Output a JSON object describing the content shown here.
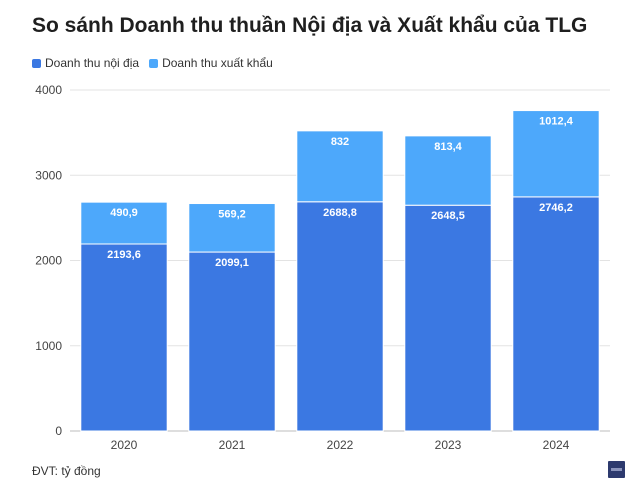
{
  "title": "So sánh Doanh thu thuần Nội địa và Xuất khẩu của TLG",
  "unit_note": "ĐVT: tỷ đồng",
  "colors": {
    "domestic": "#3b78e2",
    "export": "#4da8fb",
    "grid": "#e3e3e3"
  },
  "chart_data": {
    "type": "bar",
    "stacked": true,
    "title": "So sánh Doanh thu thuần Nội địa và Xuất khẩu của TLG",
    "categories": [
      "2020",
      "2021",
      "2022",
      "2023",
      "2024"
    ],
    "series": [
      {
        "name": "Doanh thu nội địa",
        "values": [
          2193.6,
          2099.1,
          2688.8,
          2648.5,
          2746.2
        ],
        "labels": [
          "2193,6",
          "2099,1",
          "2688,8",
          "2648,5",
          "2746,2"
        ]
      },
      {
        "name": "Doanh thu xuất khẩu",
        "values": [
          490.9,
          569.2,
          832,
          813.4,
          1012.4
        ],
        "labels": [
          "490,9",
          "569,2",
          "832",
          "813,4",
          "1012,4"
        ]
      }
    ],
    "ylim": [
      0,
      4000
    ],
    "yticks": [
      0,
      1000,
      2000,
      3000,
      4000
    ],
    "grid": true,
    "legend": "top-left"
  }
}
